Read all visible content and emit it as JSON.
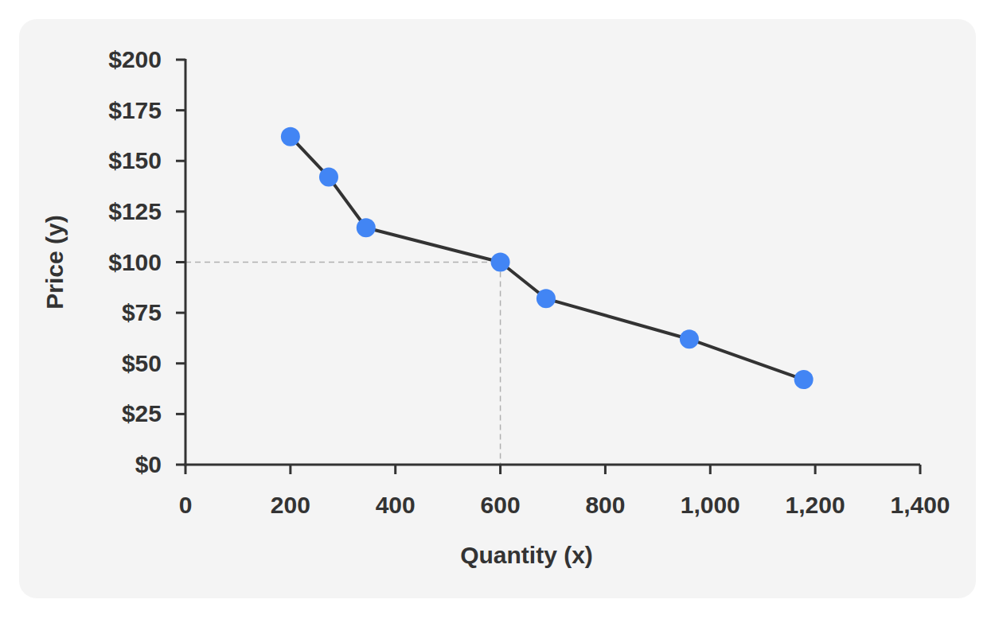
{
  "chart_data": {
    "type": "line",
    "x_label": "Quantity (x)",
    "y_label": "Price (y)",
    "x": [
      200,
      273,
      344,
      600,
      687,
      960,
      1178
    ],
    "values": [
      162,
      142,
      117,
      100,
      82,
      62,
      42
    ],
    "color": "#4285f4",
    "marker": "circle",
    "xlim": [
      0,
      1400
    ],
    "ylim": [
      0,
      200
    ],
    "xticks": [
      0,
      200,
      400,
      600,
      800,
      {
        "value": 1000,
        "label": "1,000"
      },
      {
        "value": 1200,
        "label": "1,200"
      },
      {
        "value": 1400,
        "label": "1,400"
      }
    ],
    "yticks": [
      {
        "value": 0,
        "label": "$0"
      },
      {
        "value": 25,
        "label": "$25"
      },
      {
        "value": 50,
        "label": "$50"
      },
      {
        "value": 75,
        "label": "$75"
      },
      {
        "value": 100,
        "label": "$100"
      },
      {
        "value": 125,
        "label": "$125"
      },
      {
        "value": 150,
        "label": "$150"
      },
      {
        "value": 175,
        "label": "$175"
      },
      {
        "value": 200,
        "label": "$200"
      }
    ],
    "grid": false,
    "reference": {
      "x": 600,
      "y": 100
    }
  }
}
